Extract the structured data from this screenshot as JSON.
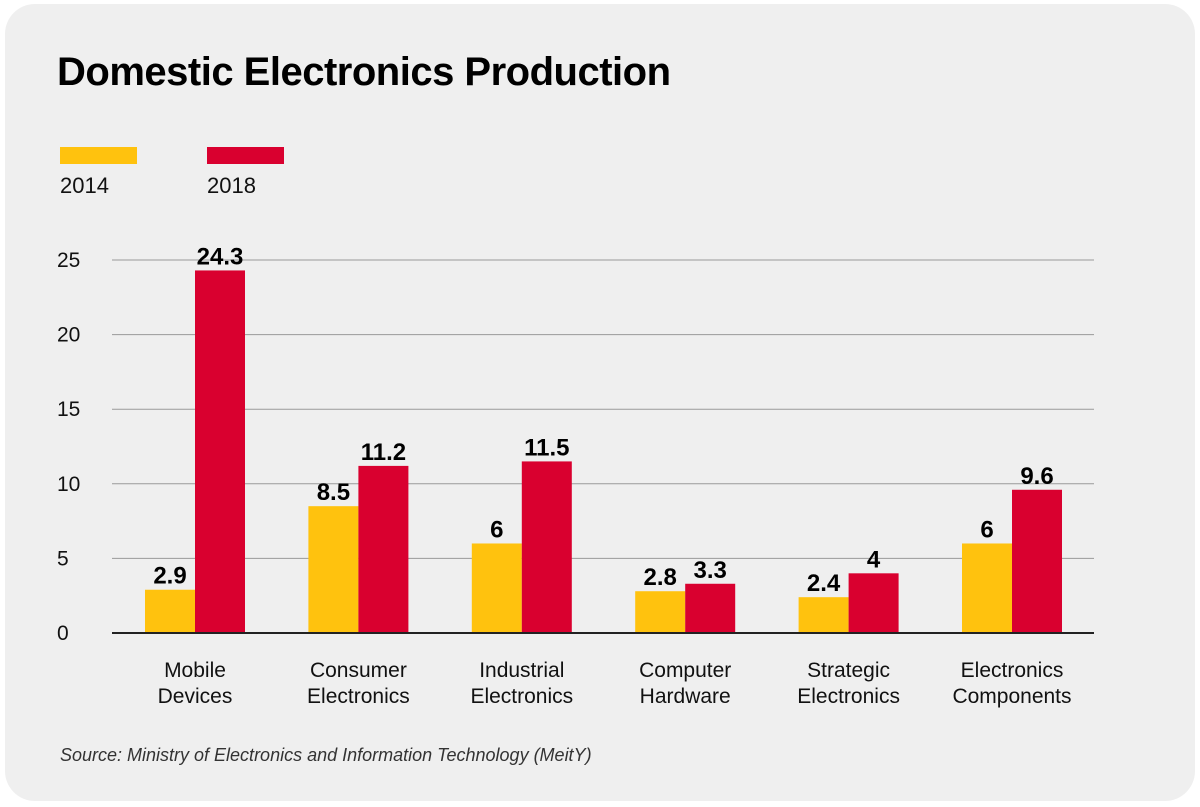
{
  "title": "Domestic Electronics Production",
  "source": "Source: Ministry of Electronics and Information Technology (MeitY)",
  "colors": {
    "2014": "#ffc20e",
    "2018": "#d9002f",
    "card": "#efefef",
    "grid": "#9a9a9a",
    "axis": "#222222"
  },
  "chart_data": {
    "type": "bar",
    "title": "Domestic Electronics Production",
    "xlabel": "",
    "ylabel": "",
    "ylim": [
      0,
      25
    ],
    "yticks": [
      0,
      5,
      10,
      15,
      20,
      25
    ],
    "grid": true,
    "legend_position": "top-left",
    "categories": [
      [
        "Mobile",
        "Devices"
      ],
      [
        "Consumer",
        "Electronics"
      ],
      [
        "Industrial",
        "Electronics"
      ],
      [
        "Computer",
        "Hardware"
      ],
      [
        "Strategic",
        "Electronics"
      ],
      [
        "Electronics",
        "Components"
      ]
    ],
    "series": [
      {
        "name": "2014",
        "color": "#ffc20e",
        "values": [
          2.9,
          8.5,
          6,
          2.8,
          2.4,
          6
        ]
      },
      {
        "name": "2018",
        "color": "#d9002f",
        "values": [
          24.3,
          11.2,
          11.5,
          3.3,
          4,
          9.6
        ]
      }
    ]
  }
}
